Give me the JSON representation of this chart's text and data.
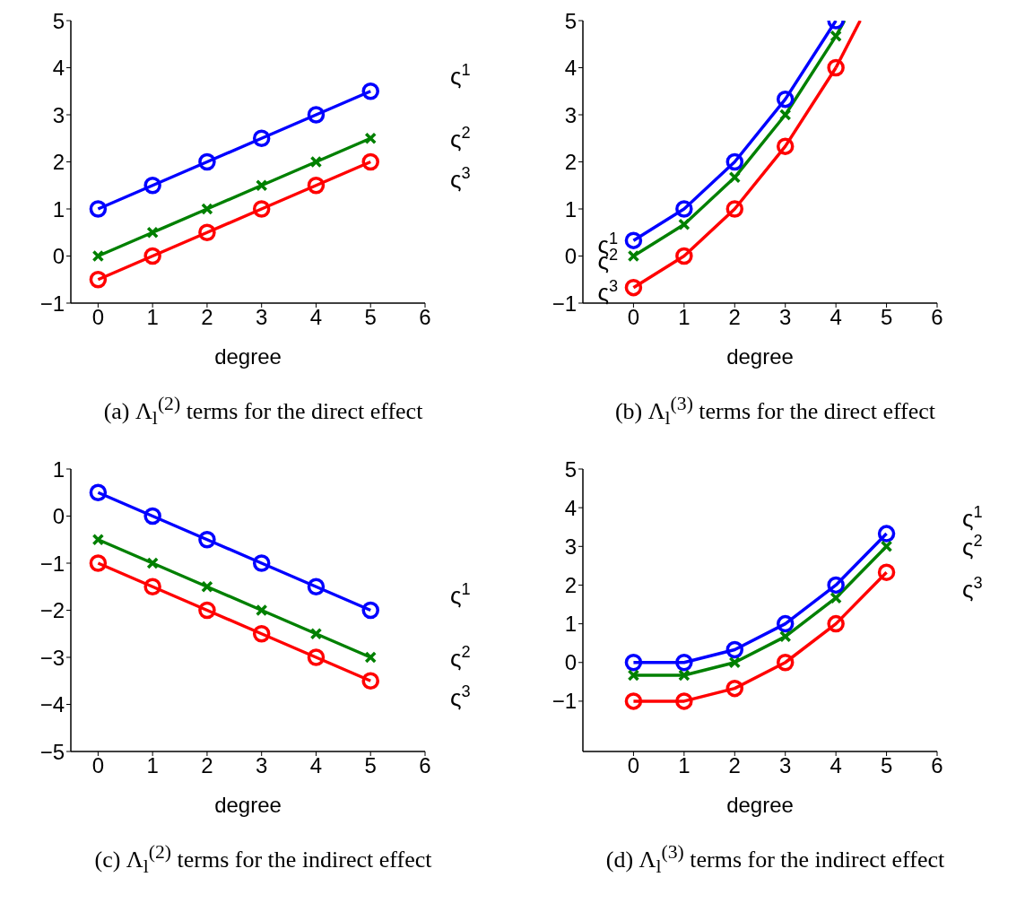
{
  "chart_data": [
    {
      "type": "line",
      "title": "(a) Λ$_{l}$$^{(2)}$ terms for the direct effect",
      "xlabel": "degree",
      "x": [
        0,
        1,
        2,
        3,
        4,
        5
      ],
      "xlim": [
        -0.5,
        6
      ],
      "xticks": [
        0,
        1,
        2,
        3,
        4,
        5,
        6
      ],
      "ylim": [
        -1,
        5
      ],
      "yticks": [
        -1,
        0,
        1,
        2,
        3,
        4,
        5
      ],
      "grid": false,
      "line_style": "solid",
      "series": [
        {
          "name": "ς$^{1}$",
          "color": "#0000ff",
          "marker": "circle",
          "values": [
            1,
            1.5,
            2,
            2.5,
            3,
            3.5
          ]
        },
        {
          "name": "ς$^{2}$",
          "color": "#008000",
          "marker": "cross",
          "values": [
            0,
            0.5,
            1,
            1.5,
            2,
            2.5
          ]
        },
        {
          "name": "ς$^{3}$",
          "color": "#ff0000",
          "marker": "circle",
          "values": [
            -0.5,
            0,
            0.5,
            1,
            1.5,
            2
          ]
        }
      ]
    },
    {
      "type": "line",
      "title": "(b) Λ$_{l}$$^{(3)}$ terms for the direct effect",
      "xlabel": "degree",
      "x": [
        0,
        1,
        2,
        3,
        4
      ],
      "xlim": [
        -1,
        6
      ],
      "xticks": [
        0,
        1,
        2,
        3,
        4,
        5,
        6
      ],
      "ylim": [
        -1,
        5
      ],
      "yticks": [
        -1,
        0,
        1,
        2,
        3,
        4,
        5
      ],
      "grid": false,
      "line_style": "solid",
      "series": [
        {
          "name": "ς$^{1}$",
          "color": "#0000ff",
          "marker": "circle",
          "values": [
            0.33,
            1,
            2,
            3.33,
            5
          ]
        },
        {
          "name": "ς$^{2}$",
          "color": "#008000",
          "marker": "cross",
          "values": [
            0,
            0.67,
            1.67,
            3,
            4.67
          ]
        },
        {
          "name": "ς$^{3}$",
          "color": "#ff0000",
          "marker": "circle",
          "values": [
            -0.67,
            0,
            1,
            2.33,
            4
          ]
        },
        {
          "color": "#008000",
          "marker": "none",
          "x": [
            4,
            4.17
          ],
          "values": [
            4.67,
            5
          ]
        },
        {
          "color": "#ff0000",
          "marker": "none",
          "x": [
            4,
            4.48
          ],
          "values": [
            4,
            5
          ]
        }
      ]
    },
    {
      "type": "line",
      "title": "(c) Λ$_{l}$$^{(2)}$ terms for the indirect effect",
      "xlabel": "degree",
      "x": [
        0,
        1,
        2,
        3,
        4,
        5
      ],
      "xlim": [
        -0.5,
        6
      ],
      "xticks": [
        0,
        1,
        2,
        3,
        4,
        5,
        6
      ],
      "ylim": [
        -5,
        1
      ],
      "yticks": [
        -5,
        -4,
        -3,
        -2,
        -1,
        0,
        1
      ],
      "grid": false,
      "line_style": "solid",
      "series": [
        {
          "name": "ς$^{1}$",
          "color": "#0000ff",
          "marker": "circle",
          "values": [
            0.5,
            0,
            -0.5,
            -1,
            -1.5,
            -2
          ]
        },
        {
          "name": "ς$^{2}$",
          "color": "#008000",
          "marker": "cross",
          "values": [
            -0.5,
            -1,
            -1.5,
            -2,
            -2.5,
            -3
          ]
        },
        {
          "name": "ς$^{3}$",
          "color": "#ff0000",
          "marker": "circle",
          "values": [
            -1,
            -1.5,
            -2,
            -2.5,
            -3,
            -3.5
          ]
        }
      ]
    },
    {
      "type": "line",
      "title": "(d) Λ$_{l}$$^{(3)}$ terms for the indirect effect",
      "xlabel": "degree",
      "x": [
        0,
        1,
        2,
        3,
        4,
        5
      ],
      "xlim": [
        -1,
        6
      ],
      "xticks": [
        0,
        1,
        2,
        3,
        4,
        5,
        6
      ],
      "ylim": [
        -2.3,
        5
      ],
      "yticks": [
        -1,
        0,
        1,
        2,
        3,
        4,
        5
      ],
      "grid": false,
      "line_style": "solid",
      "series": [
        {
          "name": "ς$^{1}$",
          "color": "#0000ff",
          "marker": "circle",
          "values": [
            0,
            0,
            0.33,
            1,
            2,
            3.33
          ]
        },
        {
          "name": "ς$^{2}$",
          "color": "#008000",
          "marker": "cross",
          "values": [
            -0.33,
            -0.33,
            0,
            0.67,
            1.67,
            3
          ]
        },
        {
          "name": "ς$^{3}$",
          "color": "#ff0000",
          "marker": "circle",
          "values": [
            -1,
            -1,
            -0.67,
            0,
            1,
            2.33
          ]
        }
      ]
    }
  ]
}
